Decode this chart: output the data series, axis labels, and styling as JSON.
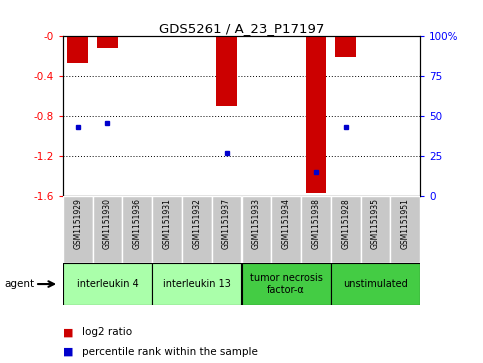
{
  "title": "GDS5261 / A_23_P17197",
  "samples": [
    "GSM1151929",
    "GSM1151930",
    "GSM1151936",
    "GSM1151931",
    "GSM1151932",
    "GSM1151937",
    "GSM1151933",
    "GSM1151934",
    "GSM1151938",
    "GSM1151928",
    "GSM1151935",
    "GSM1151951"
  ],
  "log2_ratio": [
    -0.27,
    -0.12,
    0.0,
    0.0,
    0.0,
    -0.7,
    0.0,
    0.0,
    -1.57,
    -0.21,
    0.0,
    0.0
  ],
  "percentile_rank": [
    43,
    46,
    0,
    0,
    0,
    27,
    0,
    0,
    15,
    43,
    0,
    0
  ],
  "agents": [
    {
      "label": "interleukin 4",
      "samples": [
        0,
        1,
        2
      ],
      "color": "#aaffaa"
    },
    {
      "label": "interleukin 13",
      "samples": [
        3,
        4,
        5
      ],
      "color": "#aaffaa"
    },
    {
      "label": "tumor necrosis\nfactor-α",
      "samples": [
        6,
        7,
        8
      ],
      "color": "#44cc44"
    },
    {
      "label": "unstimulated",
      "samples": [
        9,
        10,
        11
      ],
      "color": "#44cc44"
    }
  ],
  "ylim_left": [
    -1.6,
    0
  ],
  "ylim_right": [
    0,
    100
  ],
  "yticks_left": [
    0,
    -0.4,
    -0.8,
    -1.2,
    -1.6
  ],
  "yticks_right": [
    100,
    75,
    50,
    25,
    0
  ],
  "bar_color": "#cc0000",
  "dot_color": "#0000cc",
  "sample_bg_color": "#c8c8c8",
  "plot_bg": "#ffffff",
  "legend_bar_label": "log2 ratio",
  "legend_dot_label": "percentile rank within the sample",
  "figsize": [
    4.83,
    3.63
  ],
  "dpi": 100
}
